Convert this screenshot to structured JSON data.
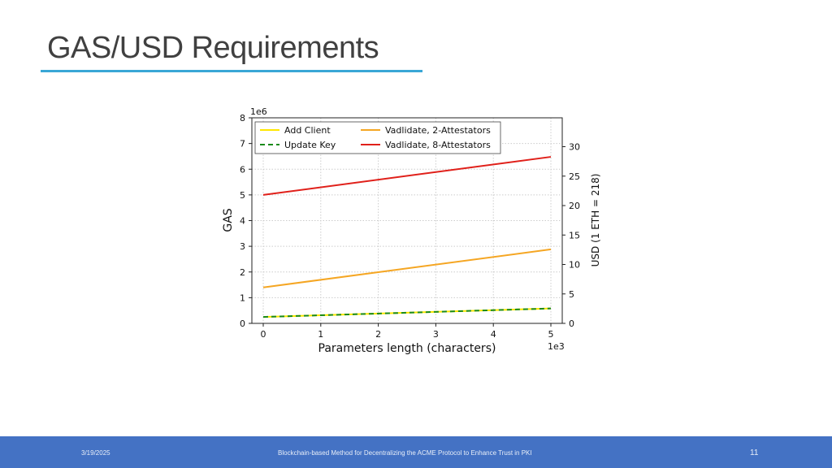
{
  "slide": {
    "title": "GAS/USD Requirements",
    "footer_date": "3/19/2025",
    "footer_title": "Blockchain-based Method for Decentralizing the ACME Protocol to Enhance Trust in PKI",
    "page_number": "11"
  },
  "chart_data": {
    "type": "line",
    "xlabel": "Parameters length (characters)",
    "x_multiplier": "1e3",
    "ylabel": "GAS",
    "y_multiplier": "1e6",
    "y2label": "USD (1 ETH = 218)",
    "xlim": [
      0,
      5
    ],
    "ylim": [
      0,
      8
    ],
    "y2lim": [
      0,
      34.9
    ],
    "x_ticks": [
      "0",
      "1",
      "2",
      "3",
      "4",
      "5"
    ],
    "y_ticks": [
      "0",
      "1",
      "2",
      "3",
      "4",
      "5",
      "6",
      "7",
      "8"
    ],
    "y2_ticks": [
      "0",
      "5",
      "10",
      "15",
      "20",
      "25",
      "30"
    ],
    "grid": true,
    "legend_position": "top",
    "series": [
      {
        "name": "Add Client",
        "color": "#ffe600",
        "dash": "solid",
        "x": [
          0,
          5
        ],
        "y": [
          0.25,
          0.58
        ]
      },
      {
        "name": "Update Key",
        "color": "#1a8a1a",
        "dash": "dashed",
        "x": [
          0,
          5
        ],
        "y": [
          0.25,
          0.58
        ]
      },
      {
        "name": "Vadlidate, 2-Attestators",
        "color": "#f5a623",
        "dash": "solid",
        "x": [
          0,
          5
        ],
        "y": [
          1.4,
          2.88
        ]
      },
      {
        "name": "Vadlidate, 8-Attestators",
        "color": "#e0201a",
        "dash": "solid",
        "x": [
          0,
          5
        ],
        "y": [
          5.0,
          6.48
        ]
      }
    ]
  }
}
